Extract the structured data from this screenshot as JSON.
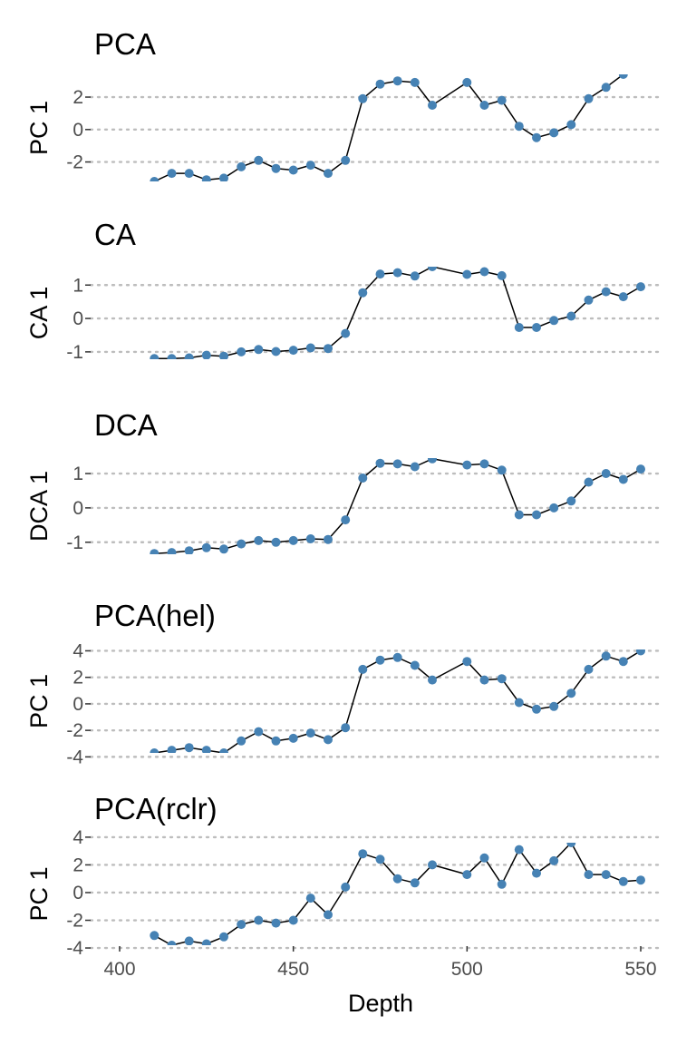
{
  "x_axis": {
    "label": "Depth",
    "ticks": [
      400,
      450,
      500,
      550
    ],
    "range": [
      392,
      559
    ]
  },
  "colors": {
    "point": "#4682b4",
    "line": "#000000",
    "grid": "#bdbdbd"
  },
  "chart_data": [
    {
      "type": "line",
      "title": "PCA",
      "ylabel": "PC 1",
      "xlabel": "",
      "grid": "major y dotted",
      "ylim": [
        -3.2,
        3.4
      ],
      "yticks": [
        -2,
        0,
        2
      ],
      "ytick_labels": [
        "-2",
        "0",
        "2"
      ],
      "x": [
        410,
        415,
        420,
        425,
        430,
        435,
        440,
        445,
        450,
        455,
        460,
        465,
        470,
        475,
        480,
        485,
        490,
        500,
        505,
        510,
        515,
        520,
        525,
        530,
        535,
        540,
        545
      ],
      "series": [
        {
          "values": [
            -3.2,
            -2.7,
            -2.7,
            -3.1,
            -3.0,
            -2.3,
            -1.9,
            -2.4,
            -2.5,
            -2.2,
            -2.7,
            -1.9,
            1.9,
            2.8,
            3.0,
            2.9,
            1.5,
            2.9,
            1.5,
            1.8,
            0.2,
            -0.5,
            -0.2,
            0.3,
            1.9,
            2.6,
            3.4
          ]
        }
      ]
    },
    {
      "type": "line",
      "title": "CA",
      "ylabel": "CA 1",
      "xlabel": "",
      "grid": "major y dotted",
      "ylim": [
        -1.22,
        1.55
      ],
      "yticks": [
        -1,
        0,
        1
      ],
      "ytick_labels": [
        "-1",
        "0",
        "1"
      ],
      "x": [
        410,
        415,
        420,
        425,
        430,
        435,
        440,
        445,
        450,
        455,
        460,
        465,
        470,
        475,
        480,
        485,
        490,
        500,
        505,
        510,
        515,
        520,
        525,
        530,
        535,
        540,
        545,
        550
      ],
      "series": [
        {
          "values": [
            -1.2,
            -1.2,
            -1.18,
            -1.1,
            -1.13,
            -1.0,
            -0.93,
            -0.99,
            -0.95,
            -0.88,
            -0.9,
            -0.45,
            0.77,
            1.33,
            1.37,
            1.27,
            1.55,
            1.32,
            1.4,
            1.28,
            -0.27,
            -0.27,
            -0.06,
            0.07,
            0.55,
            0.8,
            0.65,
            0.95
          ]
        }
      ]
    },
    {
      "type": "line",
      "title": "DCA",
      "ylabel": "DCA 1",
      "xlabel": "",
      "grid": "major y dotted",
      "ylim": [
        -1.35,
        1.45
      ],
      "yticks": [
        -1,
        0,
        1
      ],
      "ytick_labels": [
        "-1",
        "0",
        "1"
      ],
      "x": [
        410,
        415,
        420,
        425,
        430,
        435,
        440,
        445,
        450,
        455,
        460,
        465,
        470,
        475,
        480,
        485,
        490,
        500,
        505,
        510,
        515,
        520,
        525,
        530,
        535,
        540,
        545,
        550
      ],
      "series": [
        {
          "values": [
            -1.33,
            -1.3,
            -1.25,
            -1.16,
            -1.2,
            -1.05,
            -0.95,
            -1.0,
            -0.95,
            -0.9,
            -0.92,
            -0.35,
            0.87,
            1.3,
            1.28,
            1.2,
            1.43,
            1.25,
            1.28,
            1.1,
            -0.2,
            -0.2,
            0.0,
            0.2,
            0.75,
            1.0,
            0.83,
            1.13
          ]
        }
      ]
    },
    {
      "type": "line",
      "title": "PCA(hel)",
      "ylabel": "PC 1",
      "xlabel": "",
      "grid": "major y dotted",
      "ylim": [
        -3.7,
        4.1
      ],
      "yticks": [
        -4,
        -2,
        0,
        2,
        4
      ],
      "ytick_labels": [
        "-4",
        "-2",
        "0",
        "2",
        "4"
      ],
      "x": [
        410,
        415,
        420,
        425,
        430,
        435,
        440,
        445,
        450,
        455,
        460,
        465,
        470,
        475,
        480,
        485,
        490,
        500,
        505,
        510,
        515,
        520,
        525,
        530,
        535,
        540,
        545,
        550
      ],
      "series": [
        {
          "values": [
            -3.7,
            -3.5,
            -3.3,
            -3.5,
            -3.7,
            -2.8,
            -2.1,
            -2.8,
            -2.6,
            -2.2,
            -2.7,
            -1.8,
            2.6,
            3.3,
            3.5,
            2.9,
            1.8,
            3.2,
            1.8,
            1.9,
            0.1,
            -0.4,
            -0.2,
            0.8,
            2.6,
            3.6,
            3.2,
            4.0
          ]
        }
      ]
    },
    {
      "type": "line",
      "title": "PCA(rclr)",
      "ylabel": "PC 1",
      "xlabel": "Depth",
      "grid": "major y dotted",
      "ylim": [
        -3.8,
        3.6
      ],
      "yticks": [
        -4,
        -2,
        0,
        2,
        4
      ],
      "ytick_labels": [
        "-4",
        "-2",
        "0",
        "2",
        "4"
      ],
      "x": [
        410,
        415,
        420,
        425,
        430,
        435,
        440,
        445,
        450,
        455,
        460,
        465,
        470,
        475,
        480,
        485,
        490,
        500,
        505,
        510,
        515,
        520,
        525,
        530,
        535,
        540,
        545,
        550
      ],
      "series": [
        {
          "values": [
            -3.1,
            -3.8,
            -3.5,
            -3.7,
            -3.2,
            -2.3,
            -2.0,
            -2.2,
            -2.0,
            -0.4,
            -1.6,
            0.4,
            2.8,
            2.4,
            1.0,
            0.7,
            2.0,
            1.3,
            2.5,
            0.6,
            3.1,
            1.4,
            2.3,
            3.6,
            1.3,
            1.3,
            0.8,
            0.9
          ]
        }
      ]
    }
  ]
}
